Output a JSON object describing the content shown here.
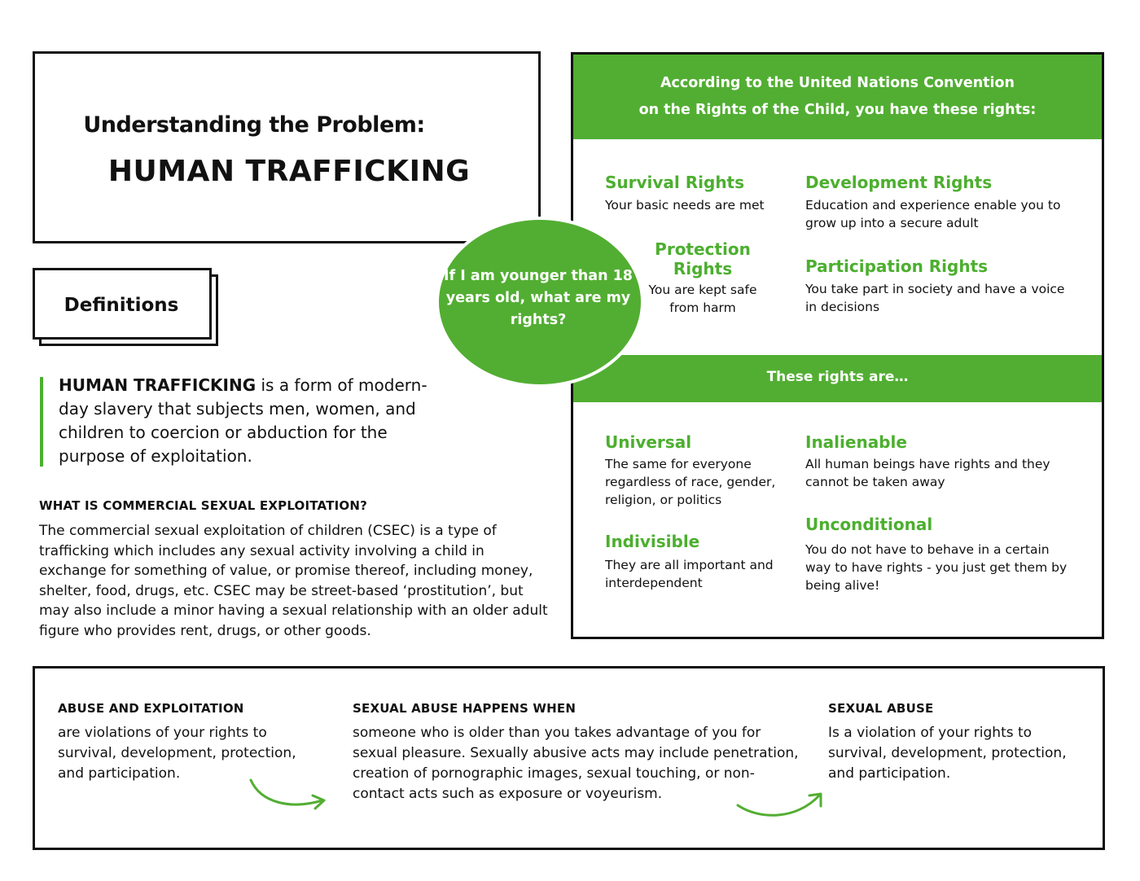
{
  "title": {
    "line1": "Understanding the Problem:",
    "line2": "HUMAN TRAFFICKING"
  },
  "definitions": {
    "tab_label": "Definitions",
    "human_trafficking": {
      "term": "HUMAN TRAFFICKING",
      "text": " is a form of modern-day slavery that subjects men, women, and children to coercion or abduction for the purpose of exploitation."
    },
    "csec": {
      "heading": "WHAT IS COMMERCIAL SEXUAL EXPLOITATION?",
      "body": "The commercial sexual exploitation of children (CSEC) is a type of trafficking which includes any sexual activity involving a child in exchange for something of value, or promise thereof, including money, shelter, food, drugs, etc. CSEC may be street-based ‘prostitution’, but may also include a minor having a sexual relationship with an older adult figure who provides rent, drugs, or other goods."
    }
  },
  "question_circle": {
    "text": "If I am younger than 18 years old, what are my rights?"
  },
  "rights": {
    "header_line1": "According to the United Nations Convention",
    "header_line2": "on the Rights of the Child, you have these rights:",
    "items": [
      {
        "title": "Survival Rights",
        "text": "Your basic needs are met"
      },
      {
        "title": "Development Rights",
        "text": "Education and experience enable you to grow up into a secure adult"
      },
      {
        "title": "Protection Rights",
        "text": "You are kept safe from harm"
      },
      {
        "title": "Participation Rights",
        "text": "You take part in society and have a voice in decisions"
      }
    ],
    "band_title": "These rights are…",
    "properties": [
      {
        "title": "Universal",
        "text": "The same for everyone regardless of race, gender, religion, or politics"
      },
      {
        "title": "Inalienable",
        "text": "All human beings have rights and they cannot be taken away"
      },
      {
        "title": "Indivisible",
        "text": "They are all important and interdependent"
      },
      {
        "title": "Unconditional",
        "text": "You do not have to behave in a certain way to have rights - you just get them by being alive!"
      }
    ]
  },
  "bottom": {
    "columns": [
      {
        "heading": "ABUSE AND EXPLOITATION",
        "text": "are violations of your rights to survival, development, protection, and participation."
      },
      {
        "heading": "SEXUAL ABUSE HAPPENS WHEN",
        "text": "someone who is older than you takes advantage of you for sexual pleasure. Sexually abusive acts may include penetration, creation of pornographic images, sexual touching, or non-contact acts such as exposure or voyeurism."
      },
      {
        "heading": "SEXUAL ABUSE",
        "text": "Is a violation of your rights to survival, development, protection, and participation."
      }
    ]
  },
  "colors": {
    "accent_green": "#52ae32",
    "text": "#111111",
    "border": "#111111"
  }
}
